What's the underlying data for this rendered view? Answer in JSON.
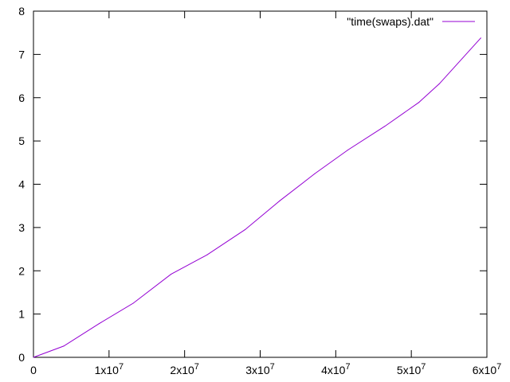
{
  "chart_data": {
    "type": "line",
    "title": "",
    "xlabel": "",
    "ylabel": "",
    "xlim": [
      0,
      60000000
    ],
    "ylim": [
      0,
      8
    ],
    "x_ticks": [
      {
        "value": 0,
        "label": "0",
        "exp": ""
      },
      {
        "value": 10000000,
        "label": "1x10",
        "exp": "7"
      },
      {
        "value": 20000000,
        "label": "2x10",
        "exp": "7"
      },
      {
        "value": 30000000,
        "label": "3x10",
        "exp": "7"
      },
      {
        "value": 40000000,
        "label": "4x10",
        "exp": "7"
      },
      {
        "value": 50000000,
        "label": "5x10",
        "exp": "7"
      },
      {
        "value": 60000000,
        "label": "6x10",
        "exp": "7"
      }
    ],
    "y_ticks": [
      {
        "value": 0,
        "label": "0"
      },
      {
        "value": 1,
        "label": "1"
      },
      {
        "value": 2,
        "label": "2"
      },
      {
        "value": 3,
        "label": "3"
      },
      {
        "value": 4,
        "label": "4"
      },
      {
        "value": 5,
        "label": "5"
      },
      {
        "value": 6,
        "label": "6"
      },
      {
        "value": 7,
        "label": "7"
      },
      {
        "value": 8,
        "label": "8"
      }
    ],
    "grid": false,
    "legend_position": "top-right",
    "series": [
      {
        "name": "\"time(swaps).dat\"",
        "color": "#9400d3",
        "x": [
          0,
          4000000,
          8700000,
          13200000,
          18200000,
          23000000,
          28000000,
          32600000,
          37200000,
          41600000,
          46500000,
          51000000,
          53700000,
          59200000
        ],
        "y": [
          0,
          0.26,
          0.78,
          1.25,
          1.92,
          2.37,
          2.95,
          3.62,
          4.24,
          4.79,
          5.34,
          5.89,
          6.32,
          7.38
        ]
      }
    ]
  }
}
